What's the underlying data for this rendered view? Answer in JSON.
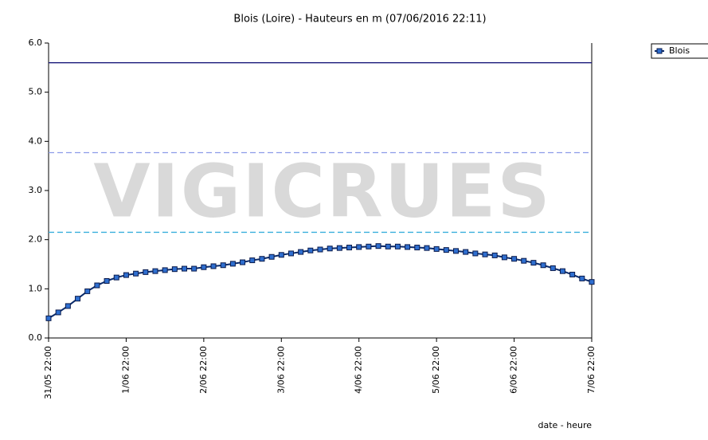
{
  "chart_data": {
    "type": "line",
    "title": "Blois (Loire) - Hauteurs en m (07/06/2016 22:11)",
    "watermark": "VIGICRUES",
    "x_label": "date - heure",
    "xlim": [
      "31/05 22:00",
      "7/06 22:00"
    ],
    "xticks": [
      "31/05 22:00",
      "1/06 22:00",
      "2/06 22:00",
      "3/06 22:00",
      "4/06 22:00",
      "5/06 22:00",
      "6/06 22:00",
      "7/06 22:00"
    ],
    "ylim": [
      0,
      6
    ],
    "yticks": [
      {
        "value": 0,
        "label": "0.0"
      },
      {
        "value": 1,
        "label": "1.0"
      },
      {
        "value": 2,
        "label": "2.0"
      },
      {
        "value": 3,
        "label": "3.0"
      },
      {
        "value": 4,
        "label": "4.0"
      },
      {
        "value": 5,
        "label": "5.0"
      },
      {
        "value": 6,
        "label": "6.0"
      }
    ],
    "reference_lines": [
      {
        "value": 5.6,
        "color": "#1a1a7a",
        "dashed": false
      },
      {
        "value": 3.77,
        "color": "#8c9ce8",
        "dashed": true
      },
      {
        "value": 2.15,
        "color": "#3ab0dc",
        "dashed": true
      }
    ],
    "legend": "top-right",
    "x": [
      "31/05 22:00",
      "1/06 01:00",
      "1/06 04:00",
      "1/06 07:00",
      "1/06 10:00",
      "1/06 13:00",
      "1/06 16:00",
      "1/06 19:00",
      "1/06 22:00",
      "2/06 01:00",
      "2/06 04:00",
      "2/06 07:00",
      "2/06 10:00",
      "2/06 13:00",
      "2/06 16:00",
      "2/06 19:00",
      "2/06 22:00",
      "3/06 01:00",
      "3/06 04:00",
      "3/06 07:00",
      "3/06 10:00",
      "3/06 13:00",
      "3/06 16:00",
      "3/06 19:00",
      "3/06 22:00",
      "4/06 01:00",
      "4/06 04:00",
      "4/06 07:00",
      "4/06 10:00",
      "4/06 13:00",
      "4/06 16:00",
      "4/06 19:00",
      "4/06 22:00",
      "5/06 01:00",
      "5/06 04:00",
      "5/06 07:00",
      "5/06 10:00",
      "5/06 13:00",
      "5/06 16:00",
      "5/06 19:00",
      "5/06 22:00",
      "6/06 01:00",
      "6/06 04:00",
      "6/06 07:00",
      "6/06 10:00",
      "6/06 13:00",
      "6/06 16:00",
      "6/06 19:00",
      "6/06 22:00",
      "7/06 01:00",
      "7/06 04:00",
      "7/06 07:00",
      "7/06 10:00",
      "7/06 13:00",
      "7/06 16:00",
      "7/06 19:00",
      "7/06 22:00"
    ],
    "series": [
      {
        "name": "Blois",
        "color": "#2f6fd0",
        "values": [
          0.4,
          0.52,
          0.65,
          0.8,
          0.95,
          1.07,
          1.16,
          1.23,
          1.28,
          1.31,
          1.34,
          1.36,
          1.38,
          1.4,
          1.41,
          1.41,
          1.44,
          1.46,
          1.48,
          1.51,
          1.54,
          1.58,
          1.61,
          1.65,
          1.69,
          1.72,
          1.75,
          1.78,
          1.8,
          1.82,
          1.83,
          1.84,
          1.85,
          1.86,
          1.87,
          1.86,
          1.86,
          1.85,
          1.84,
          1.83,
          1.81,
          1.79,
          1.77,
          1.75,
          1.72,
          1.7,
          1.68,
          1.64,
          1.61,
          1.57,
          1.53,
          1.48,
          1.42,
          1.36,
          1.29,
          1.21,
          1.14
        ]
      }
    ]
  }
}
